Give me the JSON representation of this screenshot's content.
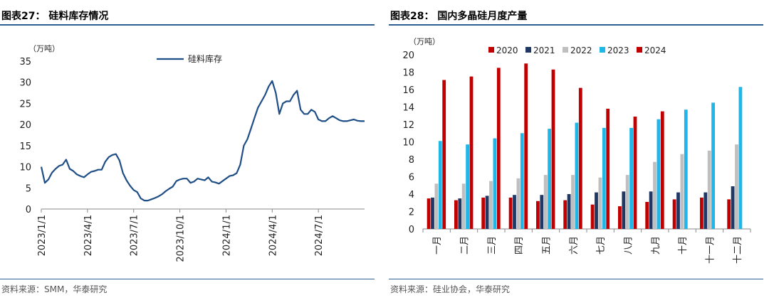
{
  "left_panel": {
    "figure_title": "图表27：  硅料库存情况",
    "source": "资料来源：SMM，华泰研究"
  },
  "right_panel": {
    "figure_title": "图表28：  国内多晶硅月度产量",
    "source": "资料来源：硅业协会，华泰研究"
  },
  "chart_data": [
    {
      "type": "line",
      "title": "硅料库存情况",
      "unit_label": "（万吨）",
      "ylim": [
        0,
        35
      ],
      "yticks": [
        0,
        5,
        10,
        15,
        20,
        25,
        30,
        35
      ],
      "x_tick_labels": [
        "2023/1/1",
        "2023/4/1",
        "2023/7/1",
        "2023/10/1",
        "2024/1/1",
        "2024/4/1",
        "2024/7/1"
      ],
      "x_tick_positions": [
        0,
        13,
        26,
        39,
        52,
        65,
        78
      ],
      "series": [
        {
          "name": "硅料库存",
          "color": "#1f4e87",
          "x": [
            0,
            1,
            2,
            3,
            4,
            5,
            6,
            7,
            8,
            9,
            10,
            11,
            12,
            13,
            14,
            15,
            16,
            17,
            18,
            19,
            20,
            21,
            22,
            23,
            24,
            25,
            26,
            27,
            28,
            29,
            30,
            31,
            32,
            33,
            34,
            35,
            36,
            37,
            38,
            39,
            40,
            41,
            42,
            43,
            44,
            45,
            46,
            47,
            48,
            49,
            50,
            51,
            52,
            53,
            54,
            55,
            56,
            57,
            58,
            59,
            60,
            61,
            62,
            63,
            64,
            65,
            66,
            67,
            68,
            69,
            70,
            71,
            72,
            73,
            74,
            75,
            76,
            77,
            78,
            79,
            80,
            81,
            82,
            83,
            84,
            85,
            86,
            87,
            88,
            89,
            90,
            91
          ],
          "values": [
            10,
            6.2,
            7,
            8.6,
            9.5,
            10.2,
            10.5,
            11.7,
            9.5,
            9,
            8.2,
            7.8,
            7.5,
            8.2,
            8.8,
            9,
            9.3,
            9.3,
            11.2,
            12.3,
            12.8,
            13,
            11.5,
            8.5,
            6.8,
            5.5,
            4.5,
            4,
            2.5,
            2,
            2,
            2.3,
            2.6,
            3,
            3.5,
            4.2,
            4.8,
            5.3,
            6.6,
            7,
            7.2,
            7.2,
            6.2,
            6.5,
            7.2,
            7,
            6.8,
            7.5,
            6.5,
            6.3,
            6,
            6.6,
            7.2,
            7.8,
            8,
            8.5,
            10.5,
            15,
            16.5,
            19,
            21.5,
            24,
            25.5,
            27,
            29,
            30.3,
            27.5,
            22.5,
            25,
            25.5,
            25.5,
            27,
            28,
            23.5,
            22.5,
            22.5,
            23.5,
            23,
            21.2,
            20.8,
            20.8,
            21.5,
            22,
            21.5,
            21,
            20.8,
            20.8,
            21,
            21.2,
            20.9,
            20.8,
            20.8
          ]
        }
      ],
      "legend": [
        "硅料库存"
      ]
    },
    {
      "type": "bar",
      "title": "国内多晶硅月度产量",
      "unit_label": "（万吨）",
      "ylim": [
        0,
        20
      ],
      "yticks": [
        0,
        2,
        4,
        6,
        8,
        10,
        12,
        14,
        16,
        18,
        20
      ],
      "categories": [
        "一月",
        "二月",
        "三月",
        "四月",
        "五月",
        "六月",
        "七月",
        "八月",
        "九月",
        "十月",
        "十一月",
        "十二月"
      ],
      "series": [
        {
          "name": "2020",
          "color": "#c00000",
          "values": [
            3.5,
            3.3,
            3.6,
            3.6,
            3.2,
            3.3,
            2.8,
            2.6,
            3.1,
            3.4,
            3.6,
            3.4
          ]
        },
        {
          "name": "2021",
          "color": "#1f3864",
          "values": [
            3.6,
            3.5,
            3.8,
            3.9,
            3.9,
            4.0,
            4.2,
            4.3,
            4.3,
            4.2,
            4.2,
            4.9
          ]
        },
        {
          "name": "2022",
          "color": "#bfbfbf",
          "values": [
            5.2,
            5.2,
            5.5,
            5.8,
            6.2,
            6.2,
            5.9,
            6.2,
            7.7,
            8.6,
            9.0,
            9.7
          ]
        },
        {
          "name": "2023",
          "color": "#1fb6e8",
          "values": [
            10.1,
            9.7,
            10.4,
            11.0,
            11.5,
            12.2,
            11.6,
            11.6,
            12.6,
            13.7,
            14.5,
            16.3
          ]
        },
        {
          "name": "2024",
          "color": "#c00000",
          "values": [
            17.1,
            17.5,
            18.5,
            19.0,
            18.3,
            16.2,
            13.8,
            12.9,
            13.5,
            null,
            null,
            null
          ]
        }
      ]
    }
  ]
}
